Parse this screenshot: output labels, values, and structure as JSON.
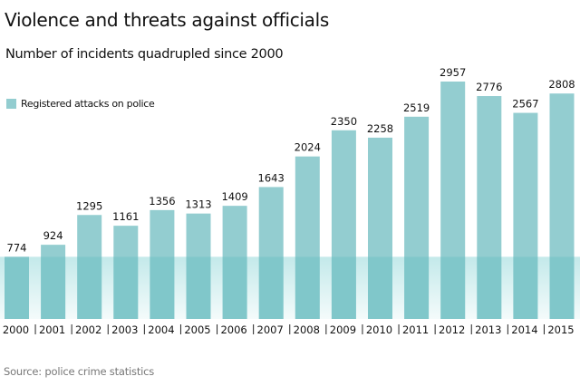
{
  "colors": {
    "bar": "#93cdd0",
    "band_top": "#c3e9ea",
    "band_bottom": "#f4fbfb",
    "text": "#111111",
    "source": "#777777"
  },
  "chart_data": {
    "type": "bar",
    "title": "Violence and threats against officials",
    "subtitle": "Number of incidents quadrupled since 2000",
    "xlabel": "",
    "ylabel": "",
    "ylim": [
      0,
      2957
    ],
    "grid": false,
    "legend_position": "top-left",
    "series": [
      {
        "name": "Registered attacks on police",
        "values": [
          774,
          924,
          1295,
          1161,
          1356,
          1313,
          1409,
          1643,
          2024,
          2350,
          2258,
          2519,
          2957,
          2776,
          2567,
          2808
        ]
      }
    ],
    "categories": [
      "2000",
      "2001",
      "2002",
      "2003",
      "2004",
      "2005",
      "2006",
      "2007",
      "2008",
      "2009",
      "2010",
      "2011",
      "2012",
      "2013",
      "2014",
      "2015"
    ],
    "annotations": [
      "Shaded band from 0 to 774 (2000 level) spans all years"
    ],
    "source": "Source: police crime statistics"
  }
}
